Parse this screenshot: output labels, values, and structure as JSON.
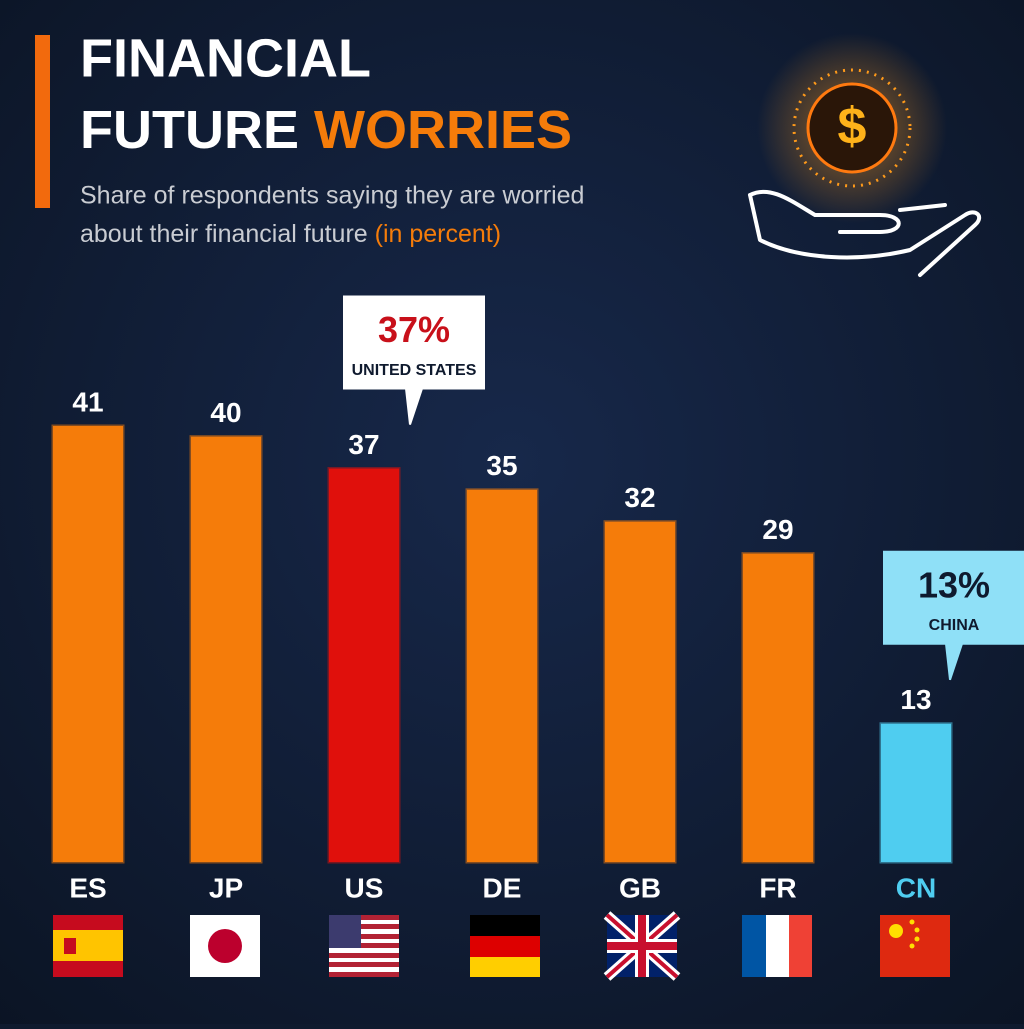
{
  "chart_data": {
    "type": "bar",
    "title": {
      "line1": "FINANCIAL",
      "line2": "FUTURE",
      "highlight": "WORRIES"
    },
    "subtitle": [
      "Share of respondents saying they are worried",
      "about their financial future"
    ],
    "subtitle_note": "(in percent)",
    "categories": [
      "ES",
      "JP",
      "US",
      "DE",
      "GB",
      "FR",
      "CN"
    ],
    "values": [
      41,
      40,
      37,
      35,
      32,
      29,
      13
    ],
    "colors": [
      "#f57c0a",
      "#f57c0a",
      "#e0100c",
      "#f57c0a",
      "#f57c0a",
      "#f57c0a",
      "#4fcdf0"
    ],
    "annotations": [
      {
        "value": 37,
        "value_label": "37%",
        "label": "UNITED STATES",
        "color": "#c8101a",
        "background": "#ffffff"
      },
      {
        "value": 13,
        "value_label": "13%",
        "label": "CHINA",
        "color": "#0f1a2e",
        "background": "#8fe0f7"
      }
    ]
  }
}
